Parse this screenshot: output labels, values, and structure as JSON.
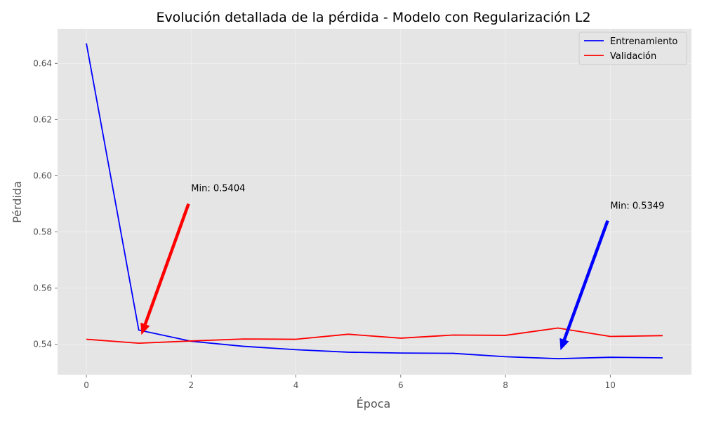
{
  "chart_data": {
    "type": "line",
    "title": "Evolución detallada de la pérdida - Modelo con Regularización L2",
    "xlabel": "Época",
    "ylabel": "Pérdida",
    "x": [
      0,
      1,
      2,
      3,
      4,
      5,
      6,
      7,
      8,
      9,
      10,
      11
    ],
    "xlim": [
      -0.55,
      11.55
    ],
    "ylim": [
      0.5292,
      0.6523
    ],
    "xticks": [
      0,
      2,
      4,
      6,
      8,
      10
    ],
    "yticks": [
      0.54,
      0.56,
      0.58,
      0.6,
      0.62,
      0.64
    ],
    "grid": true,
    "legend_position": "top-right",
    "series": [
      {
        "name": "Entrenamiento",
        "color": "#0000ff",
        "values": [
          0.6471,
          0.5451,
          0.5411,
          0.5393,
          0.5381,
          0.5372,
          0.5369,
          0.5368,
          0.5356,
          0.5349,
          0.5354,
          0.5352
        ]
      },
      {
        "name": "Validación",
        "color": "#ff0000",
        "values": [
          0.5418,
          0.5404,
          0.5412,
          0.5419,
          0.5418,
          0.5436,
          0.5422,
          0.5433,
          0.5432,
          0.5458,
          0.5428,
          0.5431
        ]
      }
    ],
    "annotations": [
      {
        "text": "Min: 0.5404",
        "text_x": 2,
        "text_y": 0.5945,
        "arrow_from": [
          1.95,
          0.59
        ],
        "arrow_to": [
          1.05,
          0.5434
        ],
        "color": "#ff0000"
      },
      {
        "text": "Min: 0.5349",
        "text_x": 10,
        "text_y": 0.5882,
        "arrow_from": [
          9.95,
          0.584
        ],
        "arrow_to": [
          9.05,
          0.5379
        ],
        "color": "#0000ff"
      }
    ]
  },
  "colors": {
    "plot_background": "#e5e5e5",
    "grid": "#f2f2f2",
    "figure_background": "#ffffff"
  }
}
